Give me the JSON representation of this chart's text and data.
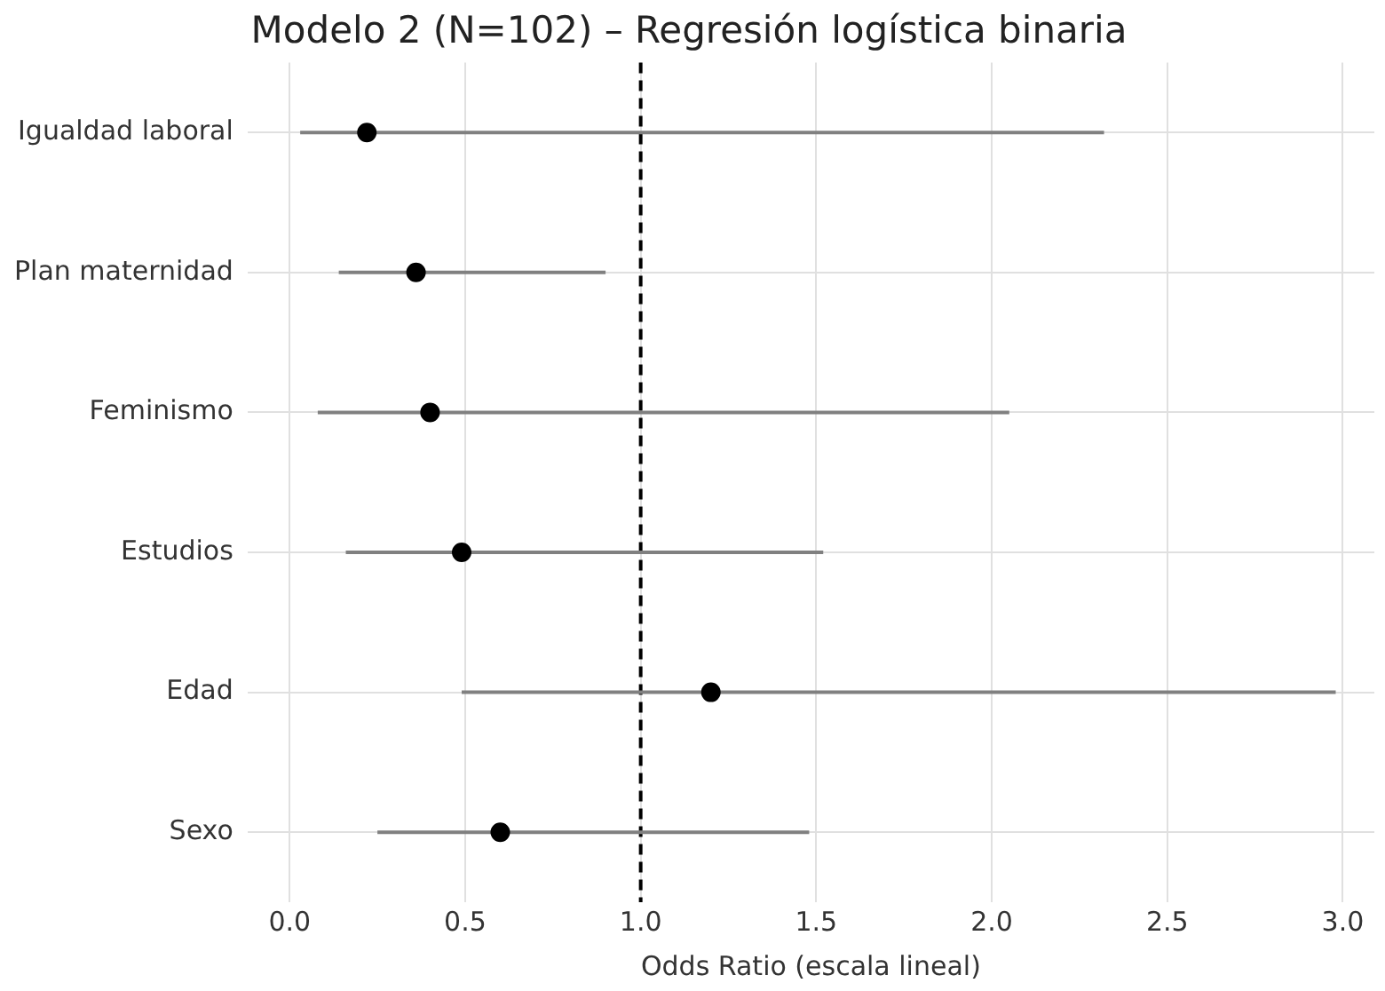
{
  "chart_data": {
    "type": "scatter",
    "orientation": "horizontal",
    "title": "Modelo 2 (N=102) – Regresión logística binaria",
    "xlabel": "Odds Ratio (escala lineal)",
    "categories": [
      "Igualdad laboral",
      "Plan maternidad",
      "Feminismo",
      "Estudios",
      "Edad",
      "Sexo"
    ],
    "values": [
      0.22,
      0.36,
      0.4,
      0.49,
      1.2,
      0.6
    ],
    "errors": [
      [
        0.03,
        2.32
      ],
      [
        0.14,
        0.9
      ],
      [
        0.08,
        2.05
      ],
      [
        0.16,
        1.52
      ],
      [
        0.49,
        2.98
      ],
      [
        0.25,
        1.48
      ]
    ],
    "color": "#000000",
    "marker": "circle",
    "xlim": [
      -0.12,
      3.09
    ],
    "xticks": [
      {
        "value": 0,
        "label": "0.0"
      },
      {
        "value": 0.5,
        "label": "0.5"
      },
      {
        "value": 1,
        "label": "1.0"
      },
      {
        "value": 1.5,
        "label": "1.5"
      },
      {
        "value": 2,
        "label": "2.0"
      },
      {
        "value": 2.5,
        "label": "2.5"
      },
      {
        "value": 3,
        "label": "3.0"
      }
    ],
    "ref_lines": [
      {
        "axis": "x",
        "value": 1,
        "color": "#000000",
        "line_style": "dashed"
      }
    ],
    "grid": true,
    "legend": false
  }
}
